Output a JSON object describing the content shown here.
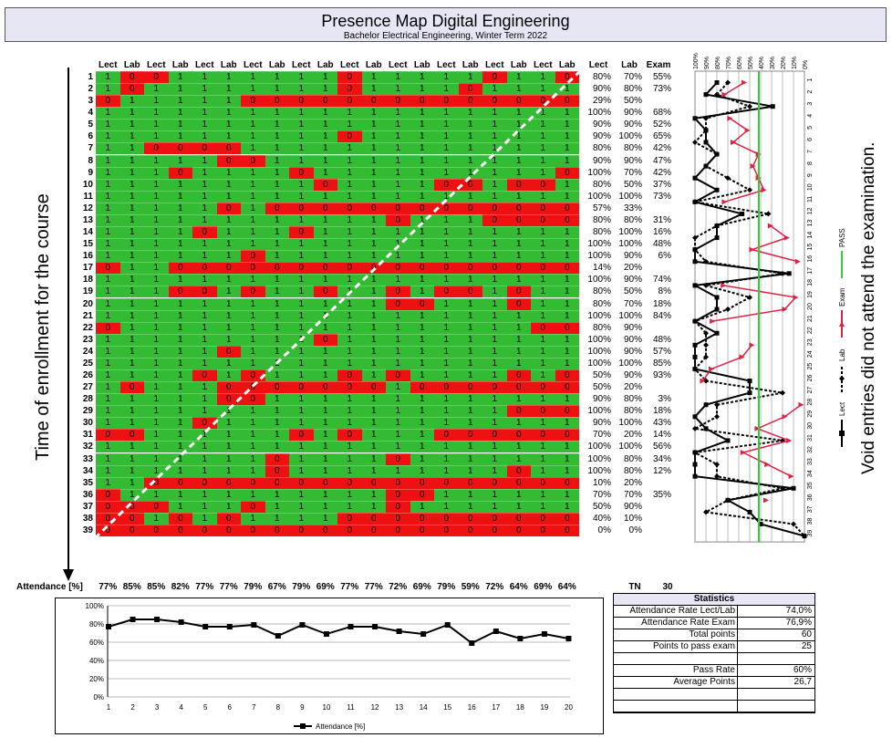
{
  "title": "Presence Map Digital Engineering",
  "subtitle": "Bachelor Electrical Engineering, Winter Term 2022",
  "left_label": "Time of enrollment for the course",
  "right_label": "Void entries did not attend the examination.",
  "column_headers": [
    "Lect",
    "Lab",
    "Lect",
    "Lab",
    "Lect",
    "Lab",
    "Lect",
    "Lab",
    "Lect",
    "Lab",
    "Lect",
    "Lab",
    "Lect",
    "Lab",
    "Lect",
    "Lab",
    "Lect",
    "Lab",
    "Lect",
    "Lab"
  ],
  "summary_headers": [
    "Lect",
    "Lab",
    "Exam"
  ],
  "rows": [
    {
      "no": "1",
      "cells": "10011111110111110110",
      "lect": "80%",
      "lab": "70%",
      "exam": "55%"
    },
    {
      "no": "2",
      "cells": "10111111110111101111",
      "lect": "90%",
      "lab": "80%",
      "exam": "73%"
    },
    {
      "no": "3",
      "cells": "01111100000000000000",
      "lect": "29%",
      "lab": "50%",
      "exam": ""
    },
    {
      "no": "4",
      "cells": "11111111111111111111",
      "lect": "100%",
      "lab": "90%",
      "exam": "68%"
    },
    {
      "no": "5",
      "cells": "11111111111111111111",
      "lect": "90%",
      "lab": "90%",
      "exam": "52%"
    },
    {
      "no": "6",
      "cells": "11111111110111111111",
      "lect": "90%",
      "lab": "100%",
      "exam": "65%"
    },
    {
      "no": "7",
      "cells": "11000011111111111111",
      "lect": "80%",
      "lab": "80%",
      "exam": "42%"
    },
    {
      "no": "8",
      "cells": "11111001111111111111",
      "lect": "90%",
      "lab": "90%",
      "exam": "47%"
    },
    {
      "no": "9",
      "cells": "11101111011111111110",
      "lect": "100%",
      "lab": "70%",
      "exam": "42%"
    },
    {
      "no": "10",
      "cells": "11111111101111001001",
      "lect": "80%",
      "lab": "50%",
      "exam": "37%"
    },
    {
      "no": "11",
      "cells": "11111111111111111111",
      "lect": "100%",
      "lab": "100%",
      "exam": "73%"
    },
    {
      "no": "12",
      "cells": "11111010000000000000",
      "lect": "57%",
      "lab": "33%",
      "exam": ""
    },
    {
      "no": "13",
      "cells": "11111111111101110000",
      "lect": "80%",
      "lab": "80%",
      "exam": "31%"
    },
    {
      "no": "14",
      "cells": "11110111011111111111",
      "lect": "80%",
      "lab": "100%",
      "exam": "16%"
    },
    {
      "no": "15",
      "cells": "11111111111111111111",
      "lect": "100%",
      "lab": "100%",
      "exam": "48%"
    },
    {
      "no": "16",
      "cells": "11111101111111111111",
      "lect": "100%",
      "lab": "90%",
      "exam": "6%"
    },
    {
      "no": "17",
      "cells": "01100000000000000000",
      "lect": "14%",
      "lab": "20%",
      "exam": ""
    },
    {
      "no": "18",
      "cells": "11111111111111111111",
      "lect": "100%",
      "lab": "90%",
      "exam": "74%"
    },
    {
      "no": "19",
      "cells": "11100101101101001011",
      "lect": "80%",
      "lab": "50%",
      "exam": "8%"
    },
    {
      "no": "20",
      "cells": "11111111111100111011",
      "lect": "80%",
      "lab": "70%",
      "exam": "18%"
    },
    {
      "no": "21",
      "cells": "11111111111111111111",
      "lect": "100%",
      "lab": "100%",
      "exam": "84%"
    },
    {
      "no": "22",
      "cells": "01111111111111111100",
      "lect": "80%",
      "lab": "90%",
      "exam": ""
    },
    {
      "no": "23",
      "cells": "11111111101111111111",
      "lect": "100%",
      "lab": "90%",
      "exam": "48%"
    },
    {
      "no": "24",
      "cells": "11111011111111111111",
      "lect": "100%",
      "lab": "90%",
      "exam": "57%"
    },
    {
      "no": "25",
      "cells": "11111111111111111111",
      "lect": "100%",
      "lab": "100%",
      "exam": "85%"
    },
    {
      "no": "26",
      "cells": "11110101110101111010",
      "lect": "50%",
      "lab": "90%",
      "exam": "93%"
    },
    {
      "no": "27",
      "cells": "10111000000010000000",
      "lect": "50%",
      "lab": "20%",
      "exam": ""
    },
    {
      "no": "28",
      "cells": "11111001111111111111",
      "lect": "90%",
      "lab": "80%",
      "exam": "3%"
    },
    {
      "no": "29",
      "cells": "11111111111111111000",
      "lect": "100%",
      "lab": "80%",
      "exam": "18%"
    },
    {
      "no": "30",
      "cells": "11110111111111111111",
      "lect": "90%",
      "lab": "100%",
      "exam": "43%"
    },
    {
      "no": "31",
      "cells": "00111111010111000000",
      "lect": "70%",
      "lab": "20%",
      "exam": "14%"
    },
    {
      "no": "32",
      "cells": "11111111111111111111",
      "lect": "100%",
      "lab": "100%",
      "exam": "56%"
    },
    {
      "no": "33",
      "cells": "11111110111101111111",
      "lect": "100%",
      "lab": "80%",
      "exam": "34%"
    },
    {
      "no": "34",
      "cells": "11111110111111111011",
      "lect": "100%",
      "lab": "80%",
      "exam": "12%"
    },
    {
      "no": "35",
      "cells": "11000000000000000000",
      "lect": "10%",
      "lab": "20%",
      "exam": ""
    },
    {
      "no": "36",
      "cells": "01111111111100111111",
      "lect": "70%",
      "lab": "70%",
      "exam": "35%"
    },
    {
      "no": "37",
      "cells": "00011101111101111111",
      "lect": "50%",
      "lab": "90%",
      "exam": ""
    },
    {
      "no": "38",
      "cells": "00101011110000000000",
      "lect": "40%",
      "lab": "10%",
      "exam": ""
    },
    {
      "no": "39",
      "cells": "00000000000000000000",
      "lect": "0%",
      "lab": "0%",
      "exam": ""
    }
  ],
  "attendance_label": "Attendance [%]",
  "attendance_values": [
    "77%",
    "85%",
    "85%",
    "82%",
    "77%",
    "77%",
    "79%",
    "67%",
    "79%",
    "69%",
    "77%",
    "77%",
    "72%",
    "69%",
    "79%",
    "59%",
    "72%",
    "64%",
    "69%",
    "64%"
  ],
  "tn_label": "TN",
  "tn_value": "30",
  "statistics": {
    "title": "Statistics",
    "rows": [
      {
        "label": "Attendance Rate Lect/Lab",
        "value": "74,0%"
      },
      {
        "label": "Attendance Rate Exam",
        "value": "76,9%"
      },
      {
        "label": "Total points",
        "value": "60"
      },
      {
        "label": "Points to pass exam",
        "value": "25"
      },
      {
        "label": "",
        "value": ""
      },
      {
        "label": "Pass Rate",
        "value": "60%"
      },
      {
        "label": "Average Points",
        "value": "26,7"
      },
      {
        "label": "",
        "value": ""
      },
      {
        "label": "",
        "value": ""
      }
    ]
  },
  "right_chart": {
    "x_ticks": [
      "100%",
      "90%",
      "80%",
      "70%",
      "60%",
      "50%",
      "40%",
      "30%",
      "20%",
      "10%",
      "0%"
    ],
    "row_ticks": [
      "1",
      "2",
      "3",
      "4",
      "5",
      "6",
      "7",
      "8",
      "9",
      "10",
      "11",
      "12",
      "13",
      "14",
      "15",
      "16",
      "17",
      "18",
      "19",
      "20",
      "21",
      "22",
      "23",
      "24",
      "25",
      "26",
      "27",
      "28",
      "29",
      "30",
      "31",
      "32",
      "33",
      "34",
      "35",
      "36",
      "37",
      "38",
      "39"
    ],
    "legend": [
      "Lect",
      "Lab",
      "Exam",
      "PASS"
    ]
  },
  "chart_data": [
    {
      "type": "line",
      "title": "",
      "xlabel": "",
      "ylabel": "",
      "x": [
        1,
        2,
        3,
        4,
        5,
        6,
        7,
        8,
        9,
        10,
        11,
        12,
        13,
        14,
        15,
        16,
        17,
        18,
        19,
        20
      ],
      "ylim": [
        0,
        100
      ],
      "y_ticks": [
        "0%",
        "20%",
        "40%",
        "60%",
        "80%",
        "100%"
      ],
      "series": [
        {
          "name": "Attendance [%]",
          "values": [
            77,
            85,
            85,
            82,
            77,
            77,
            79,
            67,
            79,
            69,
            77,
            77,
            72,
            69,
            79,
            59,
            72,
            64,
            69,
            64
          ]
        }
      ],
      "legend_position": "bottom"
    },
    {
      "type": "line",
      "title": "",
      "orientation": "horizontal",
      "x_range": [
        100,
        0
      ],
      "categories": [
        "1",
        "2",
        "3",
        "4",
        "5",
        "6",
        "7",
        "8",
        "9",
        "10",
        "11",
        "12",
        "13",
        "14",
        "15",
        "16",
        "17",
        "18",
        "19",
        "20",
        "21",
        "22",
        "23",
        "24",
        "25",
        "26",
        "27",
        "28",
        "29",
        "30",
        "31",
        "32",
        "33",
        "34",
        "35",
        "36",
        "37",
        "38",
        "39"
      ],
      "series": [
        {
          "name": "Lect",
          "values": [
            80,
            90,
            29,
            100,
            90,
            90,
            80,
            90,
            100,
            80,
            100,
            57,
            80,
            80,
            100,
            100,
            14,
            100,
            80,
            80,
            100,
            80,
            100,
            100,
            100,
            50,
            50,
            90,
            100,
            90,
            70,
            100,
            100,
            100,
            10,
            70,
            50,
            40,
            0
          ]
        },
        {
          "name": "Lab",
          "values": [
            70,
            80,
            50,
            90,
            90,
            100,
            80,
            90,
            70,
            50,
            100,
            33,
            80,
            100,
            100,
            90,
            20,
            90,
            50,
            70,
            100,
            90,
            90,
            90,
            100,
            90,
            20,
            80,
            80,
            100,
            20,
            100,
            80,
            80,
            20,
            70,
            90,
            10,
            0
          ]
        },
        {
          "name": "Exam",
          "values": [
            55,
            73,
            null,
            68,
            52,
            65,
            42,
            47,
            42,
            37,
            73,
            null,
            31,
            16,
            48,
            6,
            null,
            74,
            8,
            18,
            84,
            null,
            48,
            57,
            85,
            93,
            null,
            3,
            18,
            43,
            14,
            56,
            34,
            12,
            null,
            35,
            null,
            null,
            null
          ]
        },
        {
          "name": "PASS",
          "values": [
            41.7,
            41.7,
            41.7,
            41.7,
            41.7,
            41.7,
            41.7,
            41.7,
            41.7,
            41.7,
            41.7,
            41.7,
            41.7,
            41.7,
            41.7,
            41.7,
            41.7,
            41.7,
            41.7,
            41.7,
            41.7,
            41.7,
            41.7,
            41.7,
            41.7,
            41.7,
            41.7,
            41.7,
            41.7,
            41.7,
            41.7,
            41.7,
            41.7,
            41.7,
            41.7,
            41.7,
            41.7,
            41.7,
            41.7
          ]
        }
      ],
      "colors": {
        "Lect": "#000000",
        "Lab": "#000000",
        "Exam": "#dd2244",
        "PASS": "#33cc33"
      }
    }
  ],
  "colors": {
    "present": "#33bb33",
    "absent": "#ee1111",
    "header_bg": "#e6e6f5"
  }
}
